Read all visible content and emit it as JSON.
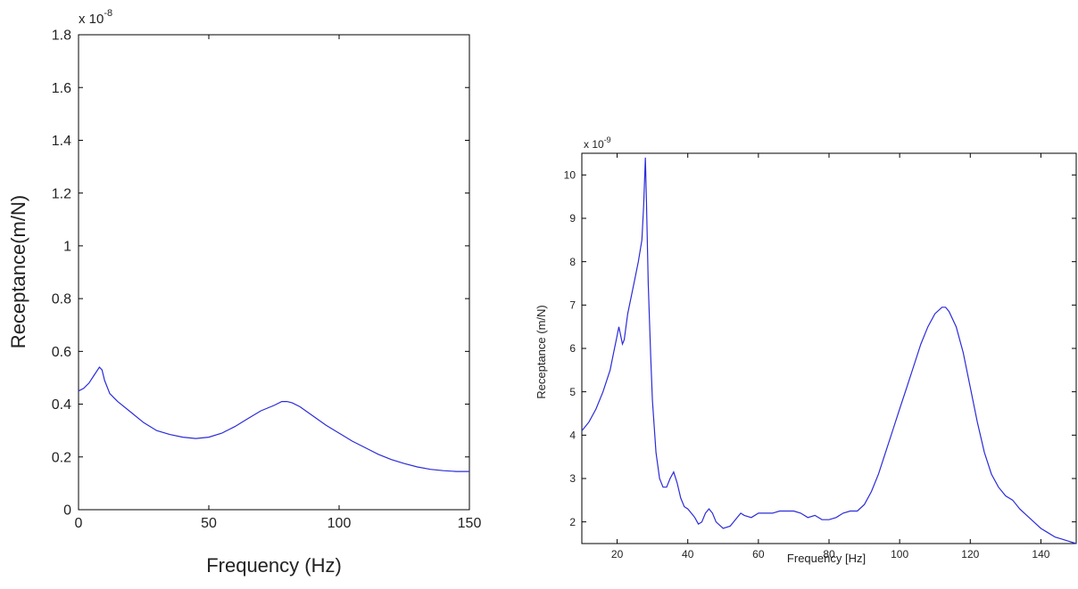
{
  "chart_data": [
    {
      "type": "line",
      "xlabel": "Frequency (Hz)",
      "ylabel": "Receptance(m/N)",
      "y_multiplier": "x 10",
      "y_exponent": "-8",
      "xlim": [
        0,
        150
      ],
      "ylim": [
        0,
        1.8
      ],
      "xticks": [
        0,
        50,
        100,
        150
      ],
      "yticks": [
        0,
        0.2,
        0.4,
        0.6,
        0.8,
        1,
        1.2,
        1.4,
        1.6,
        1.8
      ],
      "grid": false,
      "color": "#2b2bd9",
      "series": [
        {
          "x": [
            0,
            2,
            4,
            6,
            8,
            9,
            10,
            12,
            15,
            20,
            25,
            30,
            35,
            40,
            45,
            50,
            55,
            60,
            65,
            70,
            75,
            78,
            80,
            82,
            85,
            90,
            95,
            100,
            105,
            110,
            115,
            120,
            125,
            130,
            135,
            140,
            145,
            150
          ],
          "values": [
            0.45,
            0.46,
            0.48,
            0.51,
            0.54,
            0.53,
            0.49,
            0.44,
            0.41,
            0.37,
            0.33,
            0.3,
            0.285,
            0.275,
            0.27,
            0.275,
            0.29,
            0.315,
            0.345,
            0.375,
            0.395,
            0.41,
            0.41,
            0.405,
            0.39,
            0.355,
            0.32,
            0.29,
            0.26,
            0.235,
            0.21,
            0.19,
            0.175,
            0.162,
            0.153,
            0.148,
            0.145,
            0.145
          ]
        }
      ]
    },
    {
      "type": "line",
      "xlabel": "Frequency [Hz]",
      "ylabel": "Receptance (m/N)",
      "y_multiplier": "x 10",
      "y_exponent": "-9",
      "xlim": [
        10,
        150
      ],
      "ylim": [
        1.5,
        10.5
      ],
      "xticks": [
        20,
        40,
        60,
        80,
        100,
        120,
        140
      ],
      "yticks": [
        2,
        3,
        4,
        5,
        6,
        7,
        8,
        9,
        10
      ],
      "grid": false,
      "color": "#2b2bd9",
      "series": [
        {
          "x": [
            10,
            12,
            14,
            16,
            18,
            19,
            20,
            20.5,
            21,
            21.5,
            22,
            23,
            24,
            25,
            26,
            27,
            27.5,
            28,
            28.3,
            28.8,
            29.5,
            30,
            31,
            32,
            33,
            34,
            35,
            36,
            37,
            38,
            39,
            40,
            41,
            42,
            43,
            44,
            45,
            46,
            47,
            48,
            50,
            52,
            54,
            55,
            56,
            58,
            60,
            62,
            64,
            66,
            68,
            70,
            72,
            74,
            76,
            78,
            80,
            82,
            84,
            86,
            88,
            90,
            92,
            94,
            96,
            98,
            100,
            102,
            104,
            106,
            108,
            110,
            112,
            113,
            114,
            116,
            118,
            120,
            122,
            124,
            126,
            128,
            130,
            132,
            134,
            136,
            138,
            140,
            142,
            144,
            146,
            148,
            150
          ],
          "values": [
            4.1,
            4.3,
            4.6,
            5.0,
            5.5,
            5.9,
            6.3,
            6.5,
            6.3,
            6.1,
            6.2,
            6.8,
            7.2,
            7.6,
            8.0,
            8.5,
            9.3,
            10.4,
            9.4,
            7.5,
            5.8,
            4.8,
            3.6,
            3.0,
            2.8,
            2.8,
            3.0,
            3.15,
            2.9,
            2.55,
            2.35,
            2.3,
            2.2,
            2.1,
            1.95,
            2.0,
            2.2,
            2.3,
            2.2,
            2.0,
            1.85,
            1.9,
            2.1,
            2.2,
            2.15,
            2.1,
            2.2,
            2.2,
            2.2,
            2.25,
            2.25,
            2.25,
            2.2,
            2.1,
            2.15,
            2.05,
            2.05,
            2.1,
            2.2,
            2.25,
            2.25,
            2.4,
            2.7,
            3.1,
            3.6,
            4.1,
            4.6,
            5.1,
            5.6,
            6.1,
            6.5,
            6.8,
            6.95,
            6.95,
            6.85,
            6.5,
            5.9,
            5.1,
            4.3,
            3.6,
            3.1,
            2.8,
            2.6,
            2.5,
            2.3,
            2.15,
            2.0,
            1.85,
            1.75,
            1.65,
            1.6,
            1.55,
            1.5
          ]
        }
      ]
    }
  ]
}
